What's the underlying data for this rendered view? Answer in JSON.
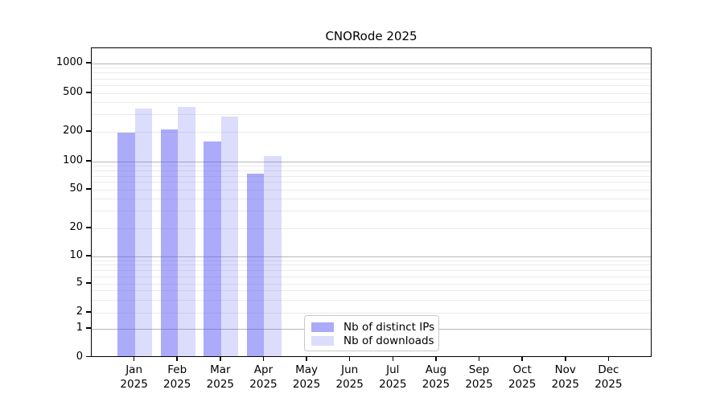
{
  "title": "CNORode 2025",
  "chart_data": {
    "type": "bar",
    "title": "CNORode 2025",
    "xlabel": "",
    "ylabel": "",
    "yscale": "symlog",
    "grid": "on",
    "legend_position": "bottom-center-inside",
    "categories": [
      "Jan 2025",
      "Feb 2025",
      "Mar 2025",
      "Apr 2025",
      "May 2025",
      "Jun 2025",
      "Jul 2025",
      "Aug 2025",
      "Sep 2025",
      "Oct 2025",
      "Nov 2025",
      "Dec 2025"
    ],
    "yticks": [
      0,
      1,
      2,
      5,
      10,
      20,
      50,
      100,
      200,
      500,
      1000
    ],
    "ylim": [
      0,
      1200
    ],
    "series": [
      {
        "name": "Nb of distinct IPs",
        "fill": "rgba(88,88,243,0.5)",
        "legend_color": "#aaaaf8",
        "values": [
          195,
          210,
          160,
          75,
          null,
          null,
          null,
          null,
          null,
          null,
          null,
          null
        ]
      },
      {
        "name": "Nb of downloads",
        "fill": "rgba(88,88,243,0.21)",
        "legend_color": "#dcdcfb",
        "values": [
          350,
          360,
          290,
          115,
          null,
          null,
          null,
          null,
          null,
          null,
          null,
          null
        ]
      }
    ]
  },
  "style": {
    "grid_major_color": "#b6b6b6",
    "grid_minor_color": "#ebebeb",
    "axis_color": "#000000",
    "background": "#ffffff"
  }
}
